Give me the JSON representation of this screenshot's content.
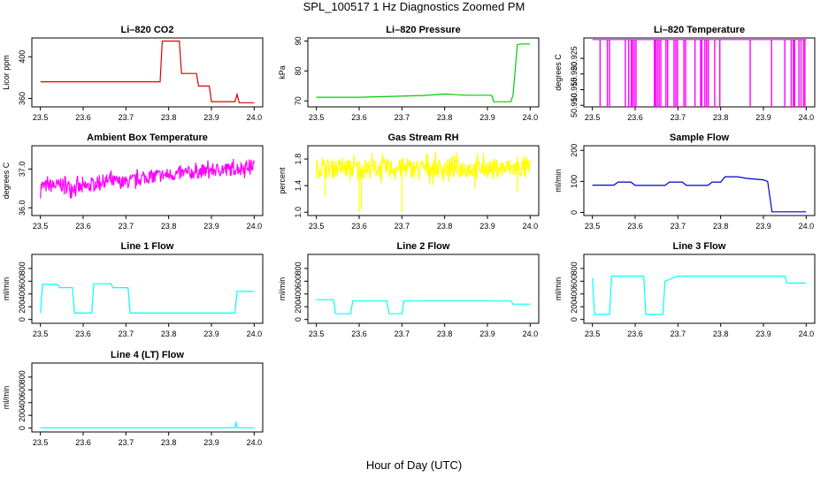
{
  "figure": {
    "title": "SPL_100517  1 Hz Diagnostics Zoomed PM",
    "xlabel": "Hour of Day (UTC)"
  },
  "colors": {
    "frame": "#000000",
    "red": "#dd0000",
    "green": "#00cc00",
    "magenta": "#ff00ff",
    "yellow": "#ffff00",
    "blue": "#0000cc",
    "cyan": "#00ffff"
  },
  "chart_data": [
    {
      "type": "line",
      "title": "Li–820 CO2",
      "ylabel": "Licor ppm",
      "color": "red",
      "xlim": [
        23.48,
        24.02
      ],
      "ylim": [
        352,
        418
      ],
      "xticks": [
        "23.5",
        "23.6",
        "23.7",
        "23.8",
        "23.9",
        "24.0"
      ],
      "yticks": [
        {
          "v": 360,
          "label": "360"
        },
        {
          "v": 400,
          "label": "400"
        }
      ],
      "x": [
        23.5,
        23.78,
        23.785,
        23.825,
        23.83,
        23.865,
        23.87,
        23.895,
        23.9,
        23.955,
        23.96,
        23.965,
        24.0
      ],
      "y": [
        376,
        376,
        415,
        415,
        384,
        384,
        372,
        372,
        357,
        357,
        364,
        356,
        356
      ]
    },
    {
      "type": "line",
      "title": "Li–820 Pressure",
      "ylabel": "kPa",
      "color": "green",
      "xlim": [
        23.48,
        24.02
      ],
      "ylim": [
        68,
        91
      ],
      "xticks": [
        "23.5",
        "23.6",
        "23.7",
        "23.8",
        "23.9",
        "24.0"
      ],
      "yticks": [
        {
          "v": 70,
          "label": "70"
        },
        {
          "v": 80,
          "label": "80"
        },
        {
          "v": 90,
          "label": "90"
        }
      ],
      "x": [
        23.5,
        23.6,
        23.75,
        23.8,
        23.85,
        23.91,
        23.915,
        23.955,
        23.96,
        23.97,
        23.98,
        24.0
      ],
      "y": [
        71.2,
        71.2,
        71.8,
        72.3,
        71.9,
        71.9,
        69.7,
        69.7,
        72,
        88.8,
        89,
        89
      ]
    },
    {
      "type": "line",
      "title": "Li–820 Temperature",
      "ylabel": "degrees C",
      "color": "magenta",
      "xlim": [
        23.48,
        24.02
      ],
      "ylim": [
        50.9095,
        50.9315
      ],
      "xticks": [
        "23.5",
        "23.6",
        "23.7",
        "23.8",
        "23.9",
        "24.0"
      ],
      "yticks": [
        {
          "v": 50.91,
          "label": "50.910"
        },
        {
          "v": 50.915,
          "label": "50.915"
        },
        {
          "v": 50.92,
          "label": "50.920"
        },
        {
          "v": 50.925,
          "label": "50.925"
        }
      ],
      "x": [
        23.5,
        24.0
      ],
      "y": [
        50.931,
        50.931
      ],
      "spikes": [
        23.518,
        23.535,
        23.54,
        23.577,
        23.585,
        23.591,
        23.594,
        23.598,
        23.602,
        23.645,
        23.648,
        23.652,
        23.656,
        23.66,
        23.672,
        23.676,
        23.691,
        23.695,
        23.699,
        23.714,
        23.718,
        23.74,
        23.753,
        23.756,
        23.763,
        23.767,
        23.771,
        23.786,
        23.798,
        23.869,
        23.919,
        23.95,
        23.965,
        23.97,
        23.973,
        23.983,
        23.988,
        23.994,
        23.997
      ],
      "spike_low": 50.9095
    },
    {
      "type": "line",
      "title": "Ambient Box Temperature",
      "ylabel": "degrees C",
      "color": "magenta",
      "xlim": [
        23.48,
        24.02
      ],
      "ylim": [
        35.8,
        37.6
      ],
      "xticks": [
        "23.5",
        "23.6",
        "23.7",
        "23.8",
        "23.9",
        "24.0"
      ],
      "yticks": [
        {
          "v": 36.0,
          "label": "36.0"
        },
        {
          "v": 37.0,
          "label": "37.0"
        }
      ],
      "x": [
        23.5,
        23.55,
        23.6,
        23.65,
        23.7,
        23.75,
        23.8,
        23.85,
        23.9,
        23.95,
        24.0
      ],
      "y": [
        36.55,
        36.58,
        36.5,
        36.7,
        36.65,
        36.8,
        36.85,
        36.9,
        36.97,
        37.0,
        37.1
      ],
      "noise": 0.22
    },
    {
      "type": "line",
      "title": "Gas Stream RH",
      "ylabel": "percent",
      "color": "yellow",
      "xlim": [
        23.48,
        24.02
      ],
      "ylim": [
        0.95,
        2.0
      ],
      "xticks": [
        "23.5",
        "23.6",
        "23.7",
        "23.8",
        "23.9",
        "24.0"
      ],
      "yticks": [
        {
          "v": 1.0,
          "label": "1.0"
        },
        {
          "v": 1.4,
          "label": "1.4"
        },
        {
          "v": 1.8,
          "label": "1.8"
        }
      ],
      "x": [
        23.5,
        24.0
      ],
      "y": [
        1.66,
        1.66
      ],
      "noise": 0.18,
      "dips": [
        [
          23.6,
          1.0
        ],
        [
          23.605,
          1.05
        ],
        [
          23.52,
          1.25
        ],
        [
          23.7,
          1.0
        ],
        [
          23.87,
          1.35
        ],
        [
          23.97,
          1.3
        ]
      ]
    },
    {
      "type": "line",
      "title": "Sample Flow",
      "ylabel": "ml/min",
      "color": "blue",
      "xlim": [
        23.48,
        24.02
      ],
      "ylim": [
        -10,
        215
      ],
      "xticks": [
        "23.5",
        "23.6",
        "23.7",
        "23.8",
        "23.9",
        "24.0"
      ],
      "yticks": [
        {
          "v": 0,
          "label": "0"
        },
        {
          "v": 100,
          "label": "100"
        },
        {
          "v": 200,
          "label": "200"
        }
      ],
      "x": [
        23.5,
        23.55,
        23.56,
        23.59,
        23.6,
        23.67,
        23.68,
        23.71,
        23.72,
        23.77,
        23.78,
        23.8,
        23.81,
        23.84,
        23.86,
        23.9,
        23.91,
        23.92,
        24.0
      ],
      "y": [
        88,
        88,
        98,
        98,
        87,
        87,
        98,
        98,
        87,
        87,
        98,
        98,
        115,
        115,
        110,
        105,
        100,
        2,
        2
      ]
    },
    {
      "type": "line",
      "title": "Line 1 Flow",
      "ylabel": "ml/min",
      "color": "cyan",
      "xlim": [
        23.48,
        24.02
      ],
      "ylim": [
        -60,
        1020
      ],
      "xticks": [
        "23.5",
        "23.6",
        "23.7",
        "23.8",
        "23.9",
        "24.0"
      ],
      "yticks": [
        {
          "v": 0,
          "label": "0"
        },
        {
          "v": 200,
          "label": "200"
        },
        {
          "v": 400,
          "label": "400"
        },
        {
          "v": 600,
          "label": "600"
        },
        {
          "v": 800,
          "label": "800"
        }
      ],
      "x": [
        23.5,
        23.505,
        23.54,
        23.545,
        23.575,
        23.58,
        23.62,
        23.625,
        23.665,
        23.67,
        23.705,
        23.71,
        23.955,
        23.96,
        24.0
      ],
      "y": [
        100,
        550,
        550,
        500,
        500,
        100,
        100,
        560,
        560,
        500,
        500,
        100,
        100,
        440,
        440
      ]
    },
    {
      "type": "line",
      "title": "Line 2 Flow",
      "ylabel": "ml/min",
      "color": "cyan",
      "xlim": [
        23.48,
        24.02
      ],
      "ylim": [
        -60,
        1020
      ],
      "xticks": [
        "23.5",
        "23.6",
        "23.7",
        "23.8",
        "23.9",
        "24.0"
      ],
      "yticks": [
        {
          "v": 0,
          "label": "0"
        },
        {
          "v": 200,
          "label": "200"
        },
        {
          "v": 400,
          "label": "400"
        },
        {
          "v": 600,
          "label": "600"
        },
        {
          "v": 800,
          "label": "800"
        }
      ],
      "x": [
        23.5,
        23.54,
        23.545,
        23.58,
        23.585,
        23.665,
        23.67,
        23.7,
        23.705,
        23.955,
        23.96,
        24.0
      ],
      "y": [
        310,
        310,
        90,
        90,
        290,
        290,
        90,
        90,
        290,
        290,
        240,
        240
      ]
    },
    {
      "type": "line",
      "title": "Line 3 Flow",
      "ylabel": "ml/min",
      "color": "cyan",
      "xlim": [
        23.48,
        24.02
      ],
      "ylim": [
        -60,
        1020
      ],
      "xticks": [
        "23.5",
        "23.6",
        "23.7",
        "23.8",
        "23.9",
        "24.0"
      ],
      "yticks": [
        {
          "v": 0,
          "label": "0"
        },
        {
          "v": 200,
          "label": "200"
        },
        {
          "v": 400,
          "label": "400"
        },
        {
          "v": 600,
          "label": "600"
        },
        {
          "v": 800,
          "label": "800"
        }
      ],
      "x": [
        23.5,
        23.505,
        23.54,
        23.545,
        23.62,
        23.625,
        23.665,
        23.67,
        23.7,
        23.95,
        23.955,
        24.0
      ],
      "y": [
        650,
        80,
        80,
        680,
        680,
        80,
        80,
        600,
        680,
        680,
        570,
        570
      ]
    },
    {
      "type": "line",
      "title": "Line 4 (LT) Flow",
      "ylabel": "ml/min",
      "color": "cyan",
      "xlim": [
        23.48,
        24.02
      ],
      "ylim": [
        -60,
        1020
      ],
      "xticks": [
        "23.5",
        "23.6",
        "23.7",
        "23.8",
        "23.9",
        "24.0"
      ],
      "yticks": [
        {
          "v": 0,
          "label": "0"
        },
        {
          "v": 200,
          "label": "200"
        },
        {
          "v": 400,
          "label": "400"
        },
        {
          "v": 600,
          "label": "600"
        },
        {
          "v": 800,
          "label": "800"
        }
      ],
      "x": [
        23.5,
        23.955,
        23.957,
        23.96,
        24.0
      ],
      "y": [
        5,
        5,
        100,
        5,
        5
      ]
    }
  ]
}
